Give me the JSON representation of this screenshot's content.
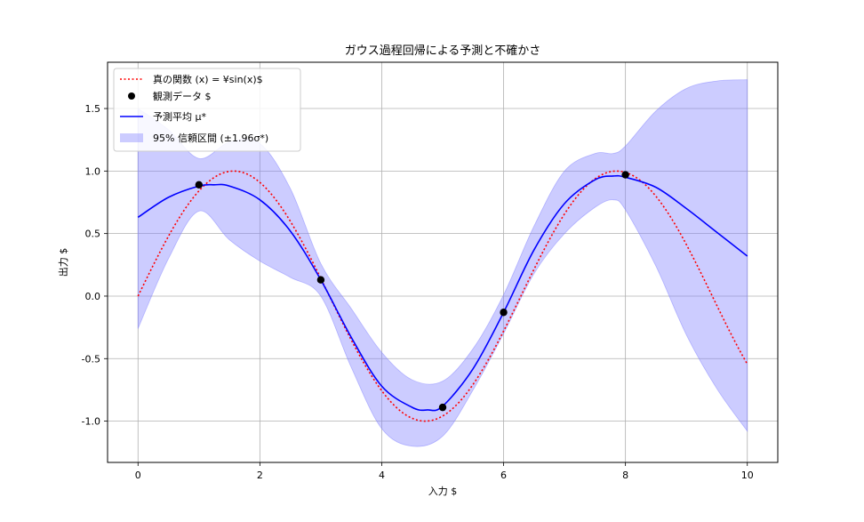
{
  "chart_data": {
    "type": "line",
    "title": "ガウス過程回帰による予測と不確かさ",
    "xlabel": "入力 $",
    "ylabel": "出力 $",
    "xlim": [
      -0.5,
      10.5
    ],
    "ylim": [
      -1.33,
      1.87
    ],
    "xticks": [
      0,
      2,
      4,
      6,
      8,
      10
    ],
    "xtick_labels": [
      "0",
      "2",
      "4",
      "6",
      "8",
      "10"
    ],
    "yticks": [
      -1.0,
      -0.5,
      0.0,
      0.5,
      1.0,
      1.5
    ],
    "ytick_labels": [
      "-1.0",
      "-0.5",
      "0.0",
      "0.5",
      "1.0",
      "1.5"
    ],
    "grid": true,
    "legend_position": "top-left",
    "colors": {
      "true_function": "#ff0000",
      "observations": "#000000",
      "mean": "#0000ff",
      "band": "#8080ff"
    },
    "true_function": {
      "name": "真の関数 (x) = ¥sin(x)$",
      "x_range": [
        0,
        10
      ]
    },
    "observations": {
      "name": "観測データ $",
      "x": [
        1,
        3,
        5,
        6,
        8
      ],
      "y": [
        0.89,
        0.13,
        -0.89,
        -0.13,
        0.97
      ]
    },
    "mean": {
      "name": "予測平均 μ*",
      "x": [
        0,
        0.5,
        1,
        1.25,
        1.5,
        2,
        2.5,
        3,
        3.5,
        4,
        4.5,
        4.75,
        5,
        5.5,
        6,
        6.5,
        7,
        7.5,
        7.8,
        8,
        8.5,
        9,
        9.5,
        10
      ],
      "y": [
        0.63,
        0.79,
        0.88,
        0.89,
        0.88,
        0.77,
        0.52,
        0.13,
        -0.33,
        -0.72,
        -0.89,
        -0.91,
        -0.88,
        -0.58,
        -0.13,
        0.37,
        0.74,
        0.93,
        0.96,
        0.95,
        0.87,
        0.7,
        0.51,
        0.32
      ]
    },
    "confidence_band": {
      "name": "95% 信頼区間 (±1.96σ*)",
      "x": [
        0,
        0.5,
        1,
        1.5,
        2,
        2.5,
        3,
        3.5,
        4,
        4.5,
        5,
        5.5,
        6,
        6.5,
        7,
        7.5,
        7.8,
        8,
        8.5,
        9,
        9.5,
        10
      ],
      "upper": [
        1.5,
        1.33,
        1.1,
        1.23,
        1.22,
        0.86,
        0.26,
        -0.1,
        -0.45,
        -0.67,
        -0.68,
        -0.42,
        0.01,
        0.56,
        1.0,
        1.14,
        1.14,
        1.2,
        1.48,
        1.66,
        1.72,
        1.73
      ],
      "lower": [
        -0.26,
        0.3,
        0.68,
        0.45,
        0.28,
        0.15,
        0.0,
        -0.57,
        -1.06,
        -1.2,
        -1.12,
        -0.75,
        -0.3,
        0.18,
        0.5,
        0.71,
        0.77,
        0.69,
        0.24,
        -0.31,
        -0.74,
        -1.08
      ]
    }
  }
}
